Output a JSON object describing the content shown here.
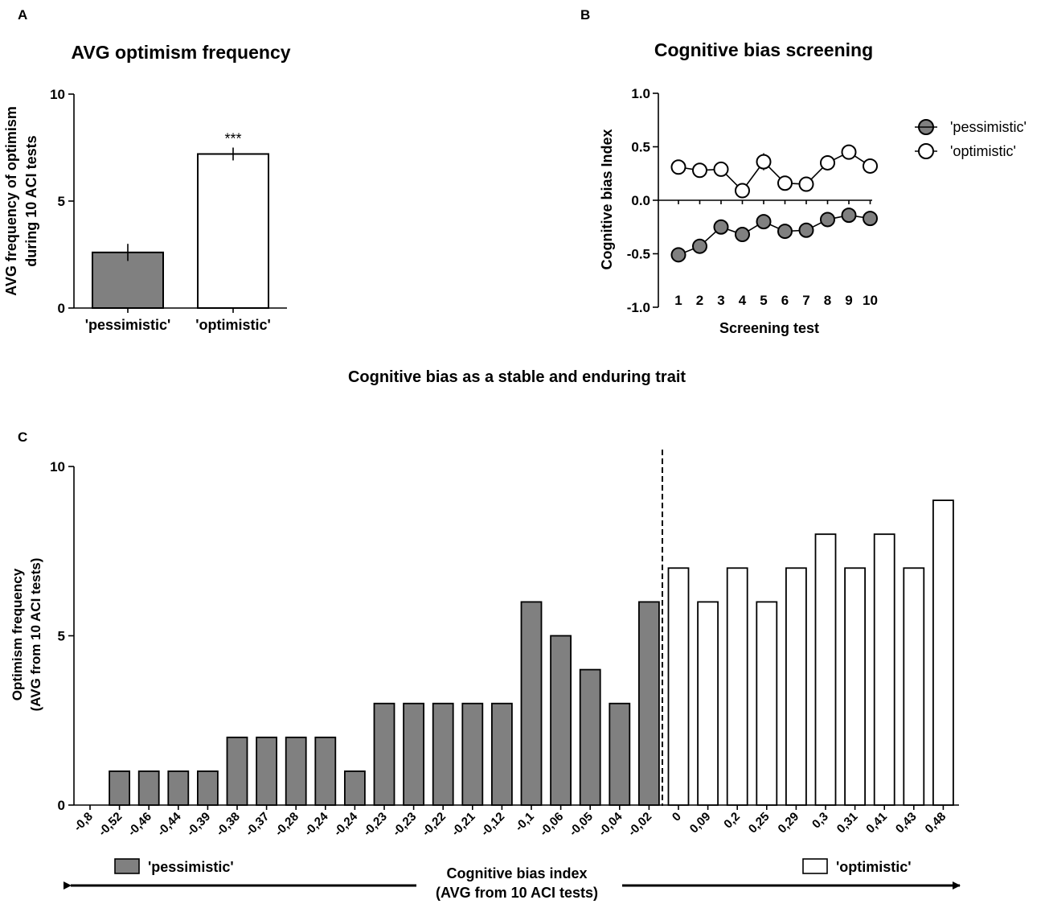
{
  "figure_title": "Cognitive bias as a stable and enduring trait",
  "colors": {
    "pessimistic": "#808080",
    "optimistic": "#ffffff",
    "stroke": "#000000"
  },
  "chart_data": [
    {
      "panel": "A",
      "type": "bar",
      "title": "AVG optimism frequency",
      "ylabel_line1": "AVG frequency of optimism",
      "ylabel_line2": "during 10 ACI tests",
      "xlabel": "",
      "categories": [
        "'pessimistic'",
        "'optimistic'"
      ],
      "values": [
        2.6,
        7.2
      ],
      "errors": [
        0.4,
        0.3
      ],
      "ylim": [
        0,
        10
      ],
      "yticks": [
        0,
        5,
        10
      ],
      "annotation": "***",
      "annotation_on": "'optimistic'"
    },
    {
      "panel": "B",
      "type": "line",
      "title": "Cognitive bias screening",
      "xlabel": "Screening test",
      "ylabel": "Cognitive bias Index",
      "x": [
        1,
        2,
        3,
        4,
        5,
        6,
        7,
        8,
        9,
        10
      ],
      "ylim": [
        -1.0,
        1.0
      ],
      "yticks": [
        "-1.0",
        "-0.5",
        "0.0",
        "0.5",
        "1.0"
      ],
      "legend_position": "right",
      "series": [
        {
          "name": "'pessimistic'",
          "values": [
            -0.51,
            -0.43,
            -0.25,
            -0.32,
            -0.2,
            -0.29,
            -0.28,
            -0.18,
            -0.14,
            -0.17
          ],
          "errors": [
            0.04,
            0.04,
            0.05,
            0.05,
            0.04,
            0.04,
            0.04,
            0.04,
            0.04,
            0.04
          ]
        },
        {
          "name": "'optimistic'",
          "values": [
            0.31,
            0.28,
            0.29,
            0.09,
            0.36,
            0.16,
            0.15,
            0.35,
            0.45,
            0.32
          ],
          "errors": [
            0.06,
            0.06,
            0.05,
            0.07,
            0.08,
            0.04,
            0.04,
            0.07,
            0.04,
            0.06
          ]
        }
      ]
    },
    {
      "panel": "C",
      "type": "bar",
      "title": "",
      "ylabel_line1": "Optimism frequency",
      "ylabel_line2": "(AVG from 10 ACI tests)",
      "xlabel_line1": "Cognitive bias index",
      "xlabel_line2": "(AVG from 10 ACI tests)",
      "ylim": [
        0,
        10
      ],
      "yticks": [
        0,
        5,
        10
      ],
      "categories": [
        "-0,8",
        "-0,52",
        "-0,46",
        "-0,44",
        "-0,39",
        "-0,38",
        "-0,37",
        "-0,28",
        "-0,24",
        "-0,24",
        "-0,23",
        "-0,23",
        "-0,22",
        "-0,21",
        "-0,12",
        "-0,1",
        "-0,06",
        "-0,05",
        "-0,04",
        "-0,02",
        "0",
        "0,09",
        "0,2",
        "0,25",
        "0,29",
        "0,3",
        "0,31",
        "0,41",
        "0,43",
        "0,48"
      ],
      "values": [
        0,
        1,
        1,
        1,
        1,
        2,
        2,
        2,
        2,
        1,
        3,
        3,
        3,
        3,
        3,
        6,
        5,
        4,
        3,
        6,
        7,
        6,
        7,
        6,
        7,
        8,
        7,
        8,
        7,
        9
      ],
      "groups": [
        "pessimistic",
        "pessimistic",
        "pessimistic",
        "pessimistic",
        "pessimistic",
        "pessimistic",
        "pessimistic",
        "pessimistic",
        "pessimistic",
        "pessimistic",
        "pessimistic",
        "pessimistic",
        "pessimistic",
        "pessimistic",
        "pessimistic",
        "pessimistic",
        "pessimistic",
        "pessimistic",
        "pessimistic",
        "pessimistic",
        "optimistic",
        "optimistic",
        "optimistic",
        "optimistic",
        "optimistic",
        "optimistic",
        "optimistic",
        "optimistic",
        "optimistic",
        "optimistic"
      ],
      "divider_after_index": 19,
      "legend": [
        {
          "label": "'pessimistic'",
          "group": "pessimistic"
        },
        {
          "label": "'optimistic'",
          "group": "optimistic"
        }
      ]
    }
  ]
}
